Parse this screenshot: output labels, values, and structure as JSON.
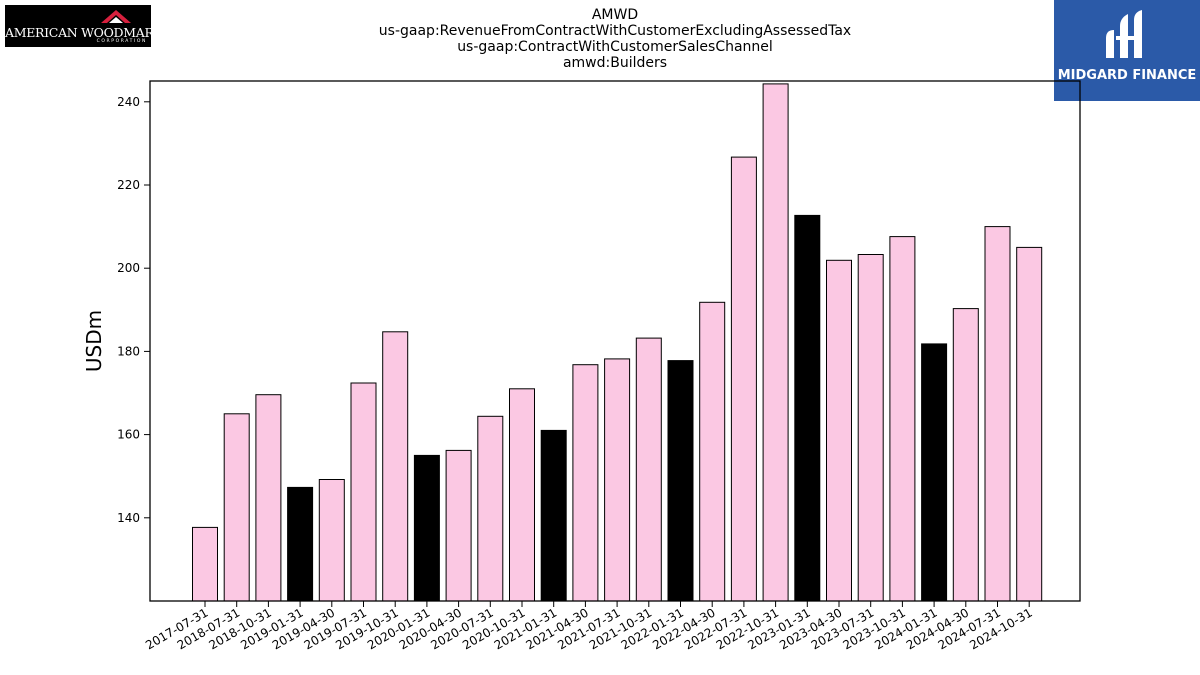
{
  "header": {
    "left_logo_text": "AMERICAN WOODMARK",
    "left_logo_subtext": "CORPORATION",
    "right_logo_text": "MIDGARD FINANCE"
  },
  "chart_data": {
    "type": "bar",
    "title_lines": [
      "AMWD",
      "us-gaap:RevenueFromContractWithCustomerExcludingAssessedTax",
      "us-gaap:ContractWithCustomerSalesChannel",
      "amwd:Builders"
    ],
    "xlabel": "",
    "ylabel": "USDm",
    "ylim": [
      120,
      245
    ],
    "yticks": [
      140,
      160,
      180,
      200,
      220,
      240
    ],
    "grid": false,
    "legend": "none",
    "colors": {
      "regular": "#fbc8e3",
      "highlight": "#000000",
      "edge": "#000000"
    },
    "categories": [
      "2017-07-31",
      "2018-07-31",
      "2018-10-31",
      "2019-01-31",
      "2019-04-30",
      "2019-07-31",
      "2019-10-31",
      "2020-01-31",
      "2020-04-30",
      "2020-07-31",
      "2020-10-31",
      "2021-01-31",
      "2021-04-30",
      "2021-07-31",
      "2021-10-31",
      "2022-01-31",
      "2022-04-30",
      "2022-07-31",
      "2022-10-31",
      "2023-01-31",
      "2023-04-30",
      "2023-07-31",
      "2023-10-31",
      "2024-01-31",
      "2024-04-30",
      "2024-07-31",
      "2024-10-31"
    ],
    "values": [
      137.7,
      165.0,
      169.6,
      147.3,
      149.2,
      172.4,
      184.7,
      155.0,
      156.2,
      164.4,
      171.0,
      161.0,
      176.8,
      178.2,
      183.2,
      177.8,
      191.8,
      226.7,
      244.3,
      212.7,
      201.9,
      203.3,
      207.6,
      181.8,
      190.3,
      210.0,
      205.0
    ],
    "highlight": [
      false,
      false,
      false,
      true,
      false,
      false,
      false,
      true,
      false,
      false,
      false,
      true,
      false,
      false,
      false,
      true,
      false,
      false,
      false,
      true,
      false,
      false,
      false,
      true,
      false,
      false,
      false
    ]
  }
}
